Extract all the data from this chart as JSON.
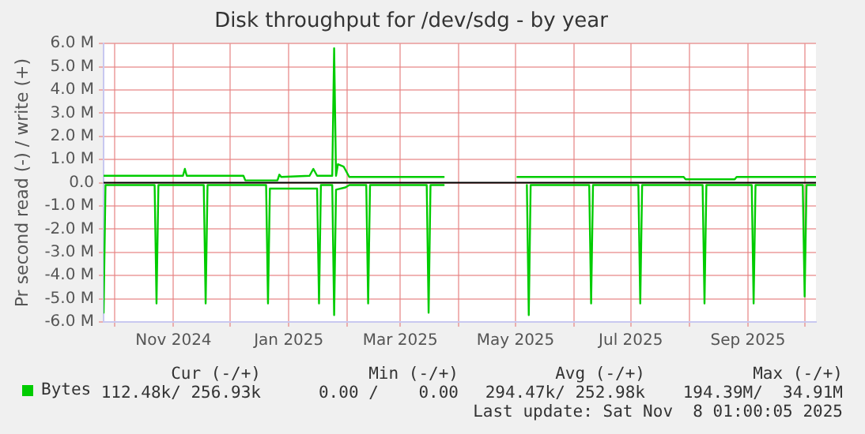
{
  "chart_data": {
    "type": "line",
    "title": "Disk throughput for /dev/sdg - by year",
    "ylabel": "Pr second read (-) / write (+)",
    "legend": "bottom",
    "grid": true,
    "marker": "none",
    "line_style": "solid",
    "xlim": [
      "2024-09-25",
      "2025-10-07"
    ],
    "xticks": [
      {
        "value": "2024-10-01",
        "label": null
      },
      {
        "value": "2024-11-01",
        "label": "Nov 2024"
      },
      {
        "value": "2024-12-01",
        "label": null
      },
      {
        "value": "2025-01-01",
        "label": "Jan 2025"
      },
      {
        "value": "2025-02-01",
        "label": null
      },
      {
        "value": "2025-03-01",
        "label": "Mar 2025"
      },
      {
        "value": "2025-04-01",
        "label": null
      },
      {
        "value": "2025-05-01",
        "label": "May 2025"
      },
      {
        "value": "2025-06-01",
        "label": null
      },
      {
        "value": "2025-07-01",
        "label": "Jul 2025"
      },
      {
        "value": "2025-08-01",
        "label": null
      },
      {
        "value": "2025-09-01",
        "label": "Sep 2025"
      },
      {
        "value": "2025-10-01",
        "label": null
      }
    ],
    "ylim": [
      -6,
      6
    ],
    "yticks": [
      {
        "value": -6,
        "label": "-6.0 M"
      },
      {
        "value": -5,
        "label": "-5.0 M"
      },
      {
        "value": -4,
        "label": "-4.0 M"
      },
      {
        "value": -3,
        "label": "-3.0 M"
      },
      {
        "value": -2,
        "label": "-2.0 M"
      },
      {
        "value": -1,
        "label": "-1.0 M"
      },
      {
        "value": 0,
        "label": "0.0"
      },
      {
        "value": 1,
        "label": "1.0 M"
      },
      {
        "value": 2,
        "label": "2.0 M"
      },
      {
        "value": 3,
        "label": "3.0 M"
      },
      {
        "value": 4,
        "label": "4.0 M"
      },
      {
        "value": 5,
        "label": "5.0 M"
      },
      {
        "value": 6,
        "label": "6.0 M"
      }
    ],
    "ref_lines": [
      {
        "axis": "y",
        "value": 0,
        "color": "#000000"
      }
    ],
    "series": [
      {
        "name": "Bytes",
        "color": "#00cc00",
        "x": [
          "2024-09-25",
          "2024-11-06",
          "2024-11-07",
          "2024-11-08",
          "2024-12-08",
          "2024-12-09",
          "2024-12-26",
          "2024-12-27",
          "2024-12-28",
          "2025-01-12",
          "2025-01-14",
          "2025-01-16",
          "2025-01-24",
          "2025-01-25",
          "2025-01-26",
          "2025-01-27",
          "2025-01-30",
          "2025-02-02",
          "2025-03-24",
          "2025-03-25",
          "2025-05-02",
          "2025-07-29",
          "2025-07-30",
          "2025-08-25",
          "2025-08-26",
          "2025-10-07"
        ],
        "values": [
          0.3,
          0.3,
          0.6,
          0.3,
          0.3,
          0.1,
          0.1,
          0.35,
          0.25,
          0.3,
          0.6,
          0.3,
          0.3,
          5.8,
          0.3,
          0.8,
          0.7,
          0.25,
          0.25,
          null,
          0.25,
          0.25,
          0.15,
          0.15,
          0.25,
          0.25
        ]
      },
      {
        "color": "#00cc00",
        "x": [
          "2024-09-25",
          "2024-09-26",
          "2024-10-22",
          "2024-10-23",
          "2024-10-24",
          "2024-11-17",
          "2024-11-18",
          "2024-11-19",
          "2024-12-20",
          "2024-12-21",
          "2024-12-22",
          "2025-01-16",
          "2025-01-17",
          "2025-01-18",
          "2025-01-24",
          "2025-01-25",
          "2025-01-26",
          "2025-01-31",
          "2025-02-02",
          "2025-02-11",
          "2025-02-12",
          "2025-02-13",
          "2025-03-15",
          "2025-03-16",
          "2025-03-17",
          "2025-03-24",
          "2025-03-25",
          "2025-05-07",
          "2025-05-08",
          "2025-05-09",
          "2025-06-09",
          "2025-06-10",
          "2025-06-11",
          "2025-07-05",
          "2025-07-06",
          "2025-07-07",
          "2025-08-08",
          "2025-08-09",
          "2025-08-10",
          "2025-09-03",
          "2025-09-04",
          "2025-09-05",
          "2025-09-30",
          "2025-10-01",
          "2025-10-02",
          "2025-10-07"
        ],
        "values": [
          -5.6,
          -0.1,
          -0.1,
          -5.2,
          -0.1,
          -0.1,
          -5.2,
          -0.1,
          -0.1,
          -5.2,
          -0.25,
          -0.25,
          -5.2,
          -0.1,
          -0.1,
          -5.7,
          -0.3,
          -0.2,
          -0.1,
          -0.1,
          -5.2,
          -0.1,
          -0.1,
          -5.6,
          -0.1,
          -0.1,
          null,
          -0.1,
          -5.7,
          -0.1,
          -0.1,
          -5.2,
          -0.1,
          -0.1,
          -5.2,
          -0.1,
          -0.1,
          -5.2,
          -0.1,
          -0.1,
          -5.2,
          -0.1,
          -0.1,
          -4.9,
          -0.1,
          -0.1
        ]
      }
    ],
    "annotations": [
      "Cur (-/+)",
      "Min (-/+)",
      "Avg (-/+)",
      "Max (-/+)",
      "112.48k/ 256.93k",
      "0.00 /    0.00",
      "294.47k/ 252.98k",
      "194.39M/  34.91M",
      "Last update: Sat Nov  8 01:00:05 2025"
    ]
  }
}
